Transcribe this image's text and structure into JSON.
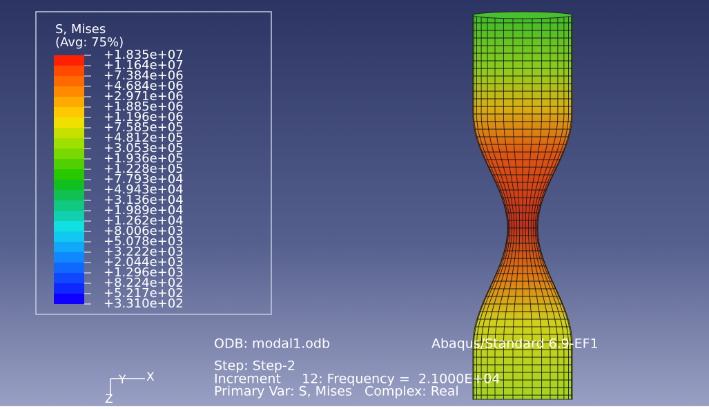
{
  "legend": {
    "title": "S, Mises",
    "subtitle": "(Avg: 75%)",
    "labels": [
      "+1.835e+07",
      "+1.164e+07",
      "+7.384e+06",
      "+4.684e+06",
      "+2.971e+06",
      "+1.885e+06",
      "+1.196e+06",
      "+7.585e+05",
      "+4.812e+05",
      "+3.053e+05",
      "+1.936e+05",
      "+1.228e+05",
      "+7.793e+04",
      "+4.943e+04",
      "+3.136e+04",
      "+1.989e+04",
      "+1.262e+04",
      "+8.006e+03",
      "+5.078e+03",
      "+3.222e+03",
      "+2.044e+03",
      "+1.296e+03",
      "+8.224e+02",
      "+5.217e+02",
      "+3.310e+02"
    ],
    "colors": [
      "#ff2000",
      "#ff4a00",
      "#ff6a00",
      "#ff8a00",
      "#ffaa00",
      "#ffc800",
      "#f0e000",
      "#c8e000",
      "#a0e000",
      "#78d800",
      "#50d000",
      "#28c800",
      "#10c020",
      "#10c050",
      "#10c880",
      "#10d0b0",
      "#10e0e0",
      "#10c8f0",
      "#10a8f8",
      "#1088ff",
      "#1068ff",
      "#1048ff",
      "#1028ff",
      "#1000ff"
    ]
  },
  "info": {
    "odb": "ODB: modal1.odb",
    "solver": "Abaqus/Standard 6.9-EF1",
    "step": "Step: Step-2",
    "increment": "Increment     12: Frequency =  2.1000E+04",
    "primary": "Primary Var: S, Mises   Complex: Real"
  },
  "triad": {
    "y": "Y",
    "x": "X",
    "z": "Z"
  }
}
